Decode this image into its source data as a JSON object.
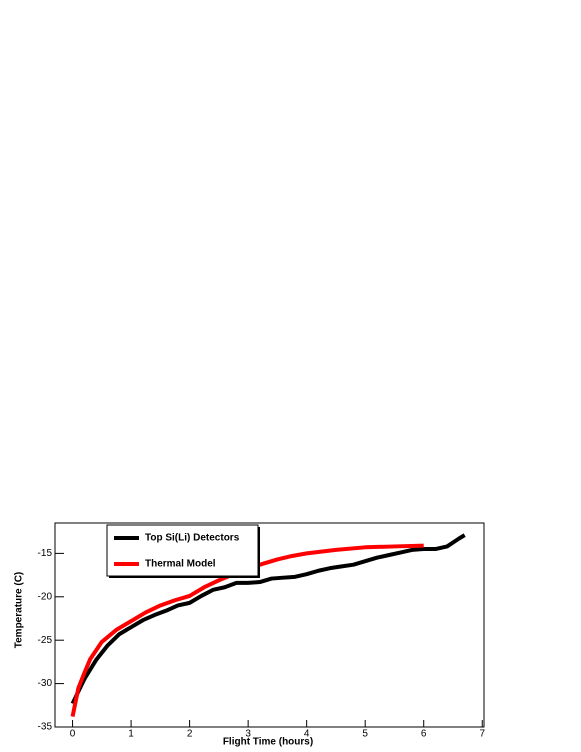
{
  "chart_data": {
    "type": "line",
    "x_label": "Flight Time (hours)",
    "y_label": "Temperature (C)",
    "xlim": [
      -0.3,
      7.03
    ],
    "ylim": [
      -35,
      -11.5
    ],
    "xticks": [
      0,
      1,
      2,
      3,
      4,
      5,
      6,
      7
    ],
    "yticks": [
      -35,
      -30,
      -25,
      -20,
      -15
    ],
    "legend": "top-left",
    "series": [
      {
        "name": "Top Si(Li) Detectors",
        "color": "#000000",
        "x": [
          0,
          0.2,
          0.4,
          0.6,
          0.8,
          1.0,
          1.2,
          1.4,
          1.6,
          1.8,
          2.0,
          2.2,
          2.4,
          2.6,
          2.8,
          3.0,
          3.2,
          3.4,
          3.6,
          3.8,
          4.0,
          4.2,
          4.4,
          4.6,
          4.8,
          5.0,
          5.2,
          5.4,
          5.6,
          5.8,
          6.0,
          6.2,
          6.4,
          6.6,
          6.7
        ],
        "values": [
          -32.3,
          -29.5,
          -27.3,
          -25.6,
          -24.3,
          -23.5,
          -22.7,
          -22.1,
          -21.6,
          -21.0,
          -20.7,
          -19.9,
          -19.2,
          -18.9,
          -18.4,
          -18.4,
          -18.3,
          -17.9,
          -17.8,
          -17.7,
          -17.4,
          -17.0,
          -16.7,
          -16.5,
          -16.3,
          -15.9,
          -15.5,
          -15.2,
          -14.9,
          -14.6,
          -14.5,
          -14.5,
          -14.2,
          -13.3,
          -12.9
        ]
      },
      {
        "name": "Thermal Model",
        "color": "#ff0000",
        "x": [
          0,
          0.1,
          0.2,
          0.3,
          0.5,
          0.75,
          1.0,
          1.25,
          1.5,
          1.75,
          2.0,
          2.25,
          2.5,
          2.75,
          3.0,
          3.25,
          3.5,
          3.75,
          4.0,
          4.5,
          5.0,
          5.5,
          6.0
        ],
        "values": [
          -33.8,
          -30.5,
          -28.8,
          -27.2,
          -25.2,
          -23.8,
          -22.8,
          -21.8,
          -21.0,
          -20.4,
          -19.9,
          -18.9,
          -18.1,
          -17.4,
          -16.8,
          -16.2,
          -15.7,
          -15.3,
          -15.0,
          -14.6,
          -14.3,
          -14.2,
          -14.1
        ]
      }
    ]
  }
}
